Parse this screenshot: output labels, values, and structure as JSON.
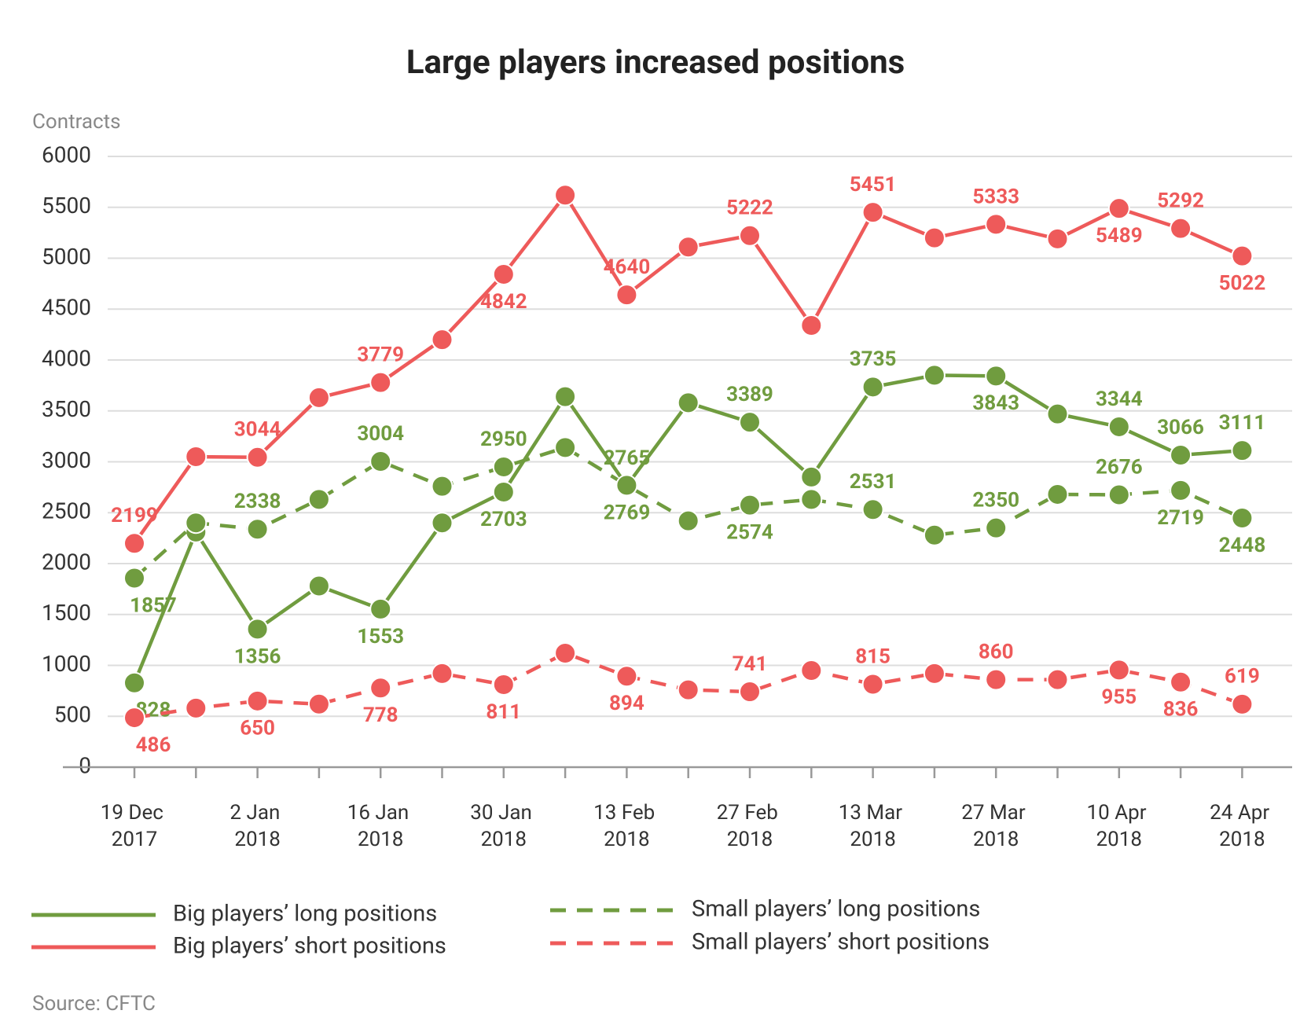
{
  "chart_data": {
    "type": "line",
    "title": "Large players increased positions",
    "ylabel": "Contracts",
    "source": "Source: CFTC",
    "categories": [
      "19 Dec 2017",
      null,
      "2 Jan 2018",
      null,
      "16 Jan 2018",
      null,
      "30 Jan 2018",
      null,
      "13 Feb 2018",
      null,
      "27 Feb 2018",
      null,
      "13 Mar 2018",
      null,
      "27 Mar 2018",
      null,
      "10 Apr 2018",
      null,
      "24 Apr 2018"
    ],
    "ylim": [
      0,
      6000
    ],
    "yticks": [
      0,
      500,
      1000,
      1500,
      2000,
      2500,
      3000,
      3500,
      4000,
      4500,
      5000,
      5500,
      6000
    ],
    "grid": true,
    "legend": "bottom",
    "series": [
      {
        "name": "Big players’ long positions",
        "color": "#709c3f",
        "style": "solid",
        "values": [
          828,
          2310,
          1356,
          1780,
          1553,
          2400,
          2703,
          3640,
          2765,
          3580,
          3389,
          2850,
          3735,
          3850,
          3843,
          3470,
          3344,
          3066,
          3111
        ],
        "value_labels": [
          "828",
          null,
          "1356",
          null,
          "1553",
          null,
          "2703",
          null,
          "2765",
          null,
          "3389",
          null,
          "3735",
          null,
          "3843",
          null,
          "3344",
          "3066",
          "3111"
        ]
      },
      {
        "name": "Big players’ short positions",
        "color": "#ee5a5a",
        "style": "solid",
        "values": [
          2199,
          3050,
          3044,
          3630,
          3779,
          4200,
          4842,
          5620,
          4640,
          5110,
          5222,
          4340,
          5451,
          5200,
          5333,
          5190,
          5489,
          5292,
          5022
        ],
        "value_labels": [
          "2199",
          null,
          "3044",
          null,
          "3779",
          null,
          "4842",
          null,
          "4640",
          null,
          "5222",
          null,
          "5451",
          null,
          "5333",
          null,
          "5489",
          "5292",
          "5022"
        ]
      },
      {
        "name": "Small players’ long positions",
        "color": "#709c3f",
        "style": "dashed",
        "values": [
          1857,
          2400,
          2338,
          2630,
          3004,
          2760,
          2950,
          3140,
          2769,
          2420,
          2574,
          2630,
          2531,
          2280,
          2350,
          2680,
          2676,
          2719,
          2448
        ],
        "value_labels": [
          "1857",
          null,
          "2338",
          null,
          "3004",
          null,
          "2950",
          null,
          "2769",
          null,
          "2574",
          null,
          "2531",
          null,
          "2350",
          null,
          "2676",
          "2719",
          "2448"
        ]
      },
      {
        "name": "Small players’ short positions",
        "color": "#ee5a5a",
        "style": "dashed",
        "values": [
          486,
          580,
          650,
          620,
          778,
          920,
          811,
          1120,
          894,
          760,
          741,
          950,
          815,
          920,
          860,
          860,
          955,
          836,
          619
        ],
        "value_labels": [
          "486",
          null,
          "650",
          null,
          "778",
          null,
          "811",
          null,
          "894",
          null,
          "741",
          null,
          "815",
          null,
          "860",
          null,
          "955",
          "836",
          "619"
        ]
      }
    ]
  }
}
